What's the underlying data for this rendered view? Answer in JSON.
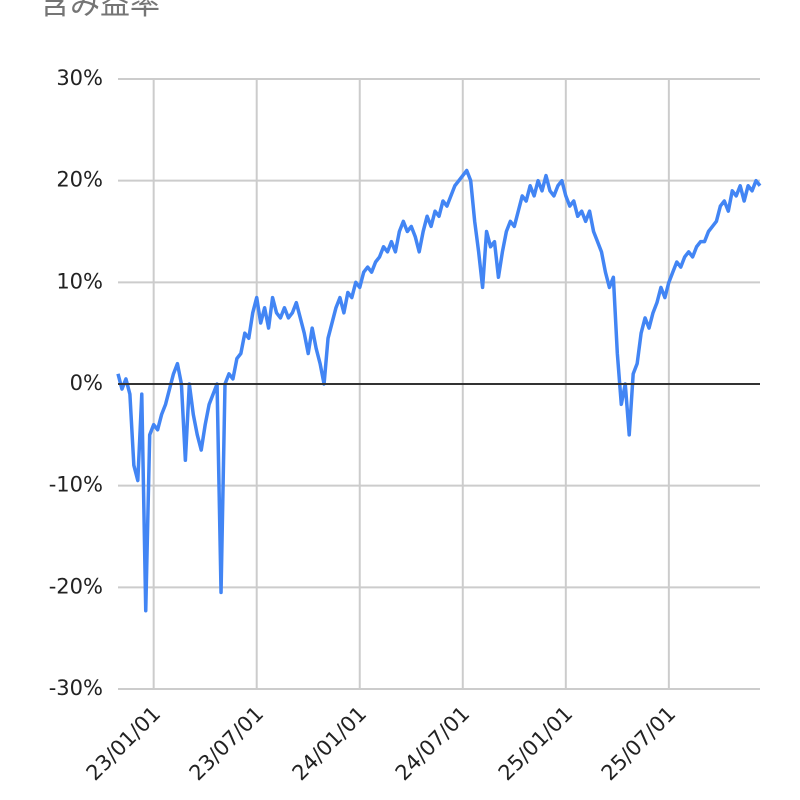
{
  "chart_data": {
    "type": "line",
    "title": "含み益率",
    "categories": [
      null,
      null,
      null,
      null,
      null,
      null,
      null,
      null,
      null,
      "23/01/01",
      null,
      null,
      null,
      null,
      null,
      null,
      null,
      null,
      null,
      null,
      null,
      null,
      null,
      null,
      null,
      null,
      null,
      null,
      null,
      null,
      null,
      null,
      null,
      null,
      null,
      "23/07/01",
      null,
      null,
      null,
      null,
      null,
      null,
      null,
      null,
      null,
      null,
      null,
      null,
      null,
      null,
      null,
      null,
      null,
      null,
      null,
      null,
      null,
      null,
      null,
      null,
      null,
      "24/01/01",
      null,
      null,
      null,
      null,
      null,
      null,
      null,
      null,
      null,
      null,
      null,
      null,
      null,
      null,
      null,
      null,
      null,
      null,
      null,
      null,
      null,
      null,
      null,
      null,
      null,
      "24/07/01",
      null,
      null,
      null,
      null,
      null,
      null,
      null,
      null,
      null,
      null,
      null,
      null,
      null,
      null,
      null,
      null,
      null,
      null,
      null,
      null,
      null,
      null,
      null,
      null,
      null,
      "25/01/01",
      null,
      null,
      null,
      null,
      null,
      null,
      null,
      null,
      null,
      null,
      null,
      null,
      null,
      null,
      null,
      null,
      null,
      null,
      null,
      null,
      null,
      null,
      null,
      null,
      null,
      "25/07/01",
      null,
      null,
      null,
      null,
      null,
      null,
      null,
      null,
      null,
      null,
      null,
      null,
      null,
      null,
      null,
      null,
      null,
      null,
      null,
      null,
      null,
      null,
      null
    ],
    "series": [
      {
        "color": "#4285f4",
        "values": [
          1,
          -0.5,
          0.5,
          -1,
          -8,
          -9.5,
          -1,
          -22.3,
          -5,
          -4,
          -4.5,
          -3,
          -2,
          -0.5,
          1,
          2,
          0,
          -7.5,
          0,
          -3,
          -5,
          -6.5,
          -4,
          -2,
          -1,
          0,
          -20.5,
          0,
          1,
          0.5,
          2.5,
          3,
          5,
          4.5,
          7,
          8.5,
          6,
          7.5,
          5.5,
          8.5,
          7,
          6.5,
          7.5,
          6.5,
          7,
          8,
          6.5,
          5,
          3,
          5.5,
          3.5,
          2,
          0,
          4.5,
          6,
          7.5,
          8.5,
          7,
          9,
          8.5,
          10,
          9.5,
          11,
          11.5,
          11,
          12,
          12.5,
          13.5,
          13,
          14,
          13,
          15,
          16,
          15,
          15.5,
          14.5,
          13,
          15,
          16.5,
          15.5,
          17,
          16.5,
          18,
          17.5,
          18.5,
          19.5,
          20,
          20.5,
          21,
          20,
          16,
          13,
          9.5,
          15,
          13.5,
          14,
          10.5,
          13,
          15,
          16,
          15.5,
          17,
          18.5,
          18,
          19.5,
          18.5,
          20,
          19,
          20.5,
          19,
          18.5,
          19.5,
          20,
          18.5,
          17.5,
          18,
          16.5,
          17,
          16,
          17,
          15,
          14,
          13,
          11,
          9.5,
          10.5,
          3,
          -2,
          0,
          -5,
          1,
          2,
          5,
          6.5,
          5.5,
          7,
          8,
          9.5,
          8.5,
          10,
          11,
          12,
          11.5,
          12.5,
          13,
          12.5,
          13.5,
          14,
          14,
          15,
          15.5,
          16,
          17.5,
          18,
          17,
          19,
          18.5,
          19.5,
          18,
          19.5,
          19,
          20,
          19.5
        ]
      }
    ],
    "ylim": [
      -30,
      30
    ],
    "yticks": [
      {
        "value": -30,
        "label": "-30%"
      },
      {
        "value": -20,
        "label": "-20%"
      },
      {
        "value": -10,
        "label": "-10%"
      },
      {
        "value": 0,
        "label": "0%"
      },
      {
        "value": 10,
        "label": "10%"
      },
      {
        "value": 20,
        "label": "20%"
      },
      {
        "value": 30,
        "label": "30%"
      }
    ],
    "grid": true
  }
}
